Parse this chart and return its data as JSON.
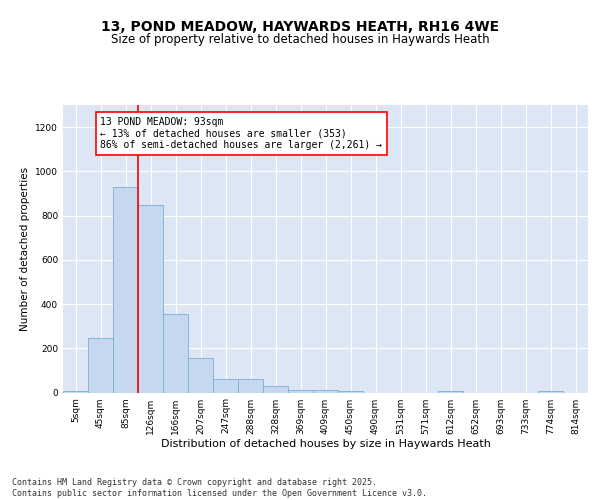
{
  "title": "13, POND MEADOW, HAYWARDS HEATH, RH16 4WE",
  "subtitle": "Size of property relative to detached houses in Haywards Heath",
  "xlabel": "Distribution of detached houses by size in Haywards Heath",
  "ylabel": "Number of detached properties",
  "categories": [
    "5sqm",
    "45sqm",
    "85sqm",
    "126sqm",
    "166sqm",
    "207sqm",
    "247sqm",
    "288sqm",
    "328sqm",
    "369sqm",
    "409sqm",
    "450sqm",
    "490sqm",
    "531sqm",
    "571sqm",
    "612sqm",
    "652sqm",
    "693sqm",
    "733sqm",
    "774sqm",
    "814sqm"
  ],
  "values": [
    8,
    248,
    930,
    850,
    355,
    158,
    63,
    63,
    28,
    13,
    13,
    5,
    0,
    0,
    0,
    8,
    0,
    0,
    0,
    8,
    0
  ],
  "bar_color": "#c5d8f0",
  "bar_edge_color": "#7bafd4",
  "vline_color": "red",
  "vline_index": 2,
  "annotation_text": "13 POND MEADOW: 93sqm\n← 13% of detached houses are smaller (353)\n86% of semi-detached houses are larger (2,261) →",
  "annotation_box_color": "white",
  "annotation_box_edge_color": "red",
  "ylim": [
    0,
    1300
  ],
  "yticks": [
    0,
    200,
    400,
    600,
    800,
    1000,
    1200
  ],
  "background_color": "#dce6f5",
  "footer_text": "Contains HM Land Registry data © Crown copyright and database right 2025.\nContains public sector information licensed under the Open Government Licence v3.0.",
  "title_fontsize": 10,
  "subtitle_fontsize": 8.5,
  "xlabel_fontsize": 8,
  "ylabel_fontsize": 7.5,
  "tick_fontsize": 6.5,
  "annotation_fontsize": 7,
  "footer_fontsize": 6
}
